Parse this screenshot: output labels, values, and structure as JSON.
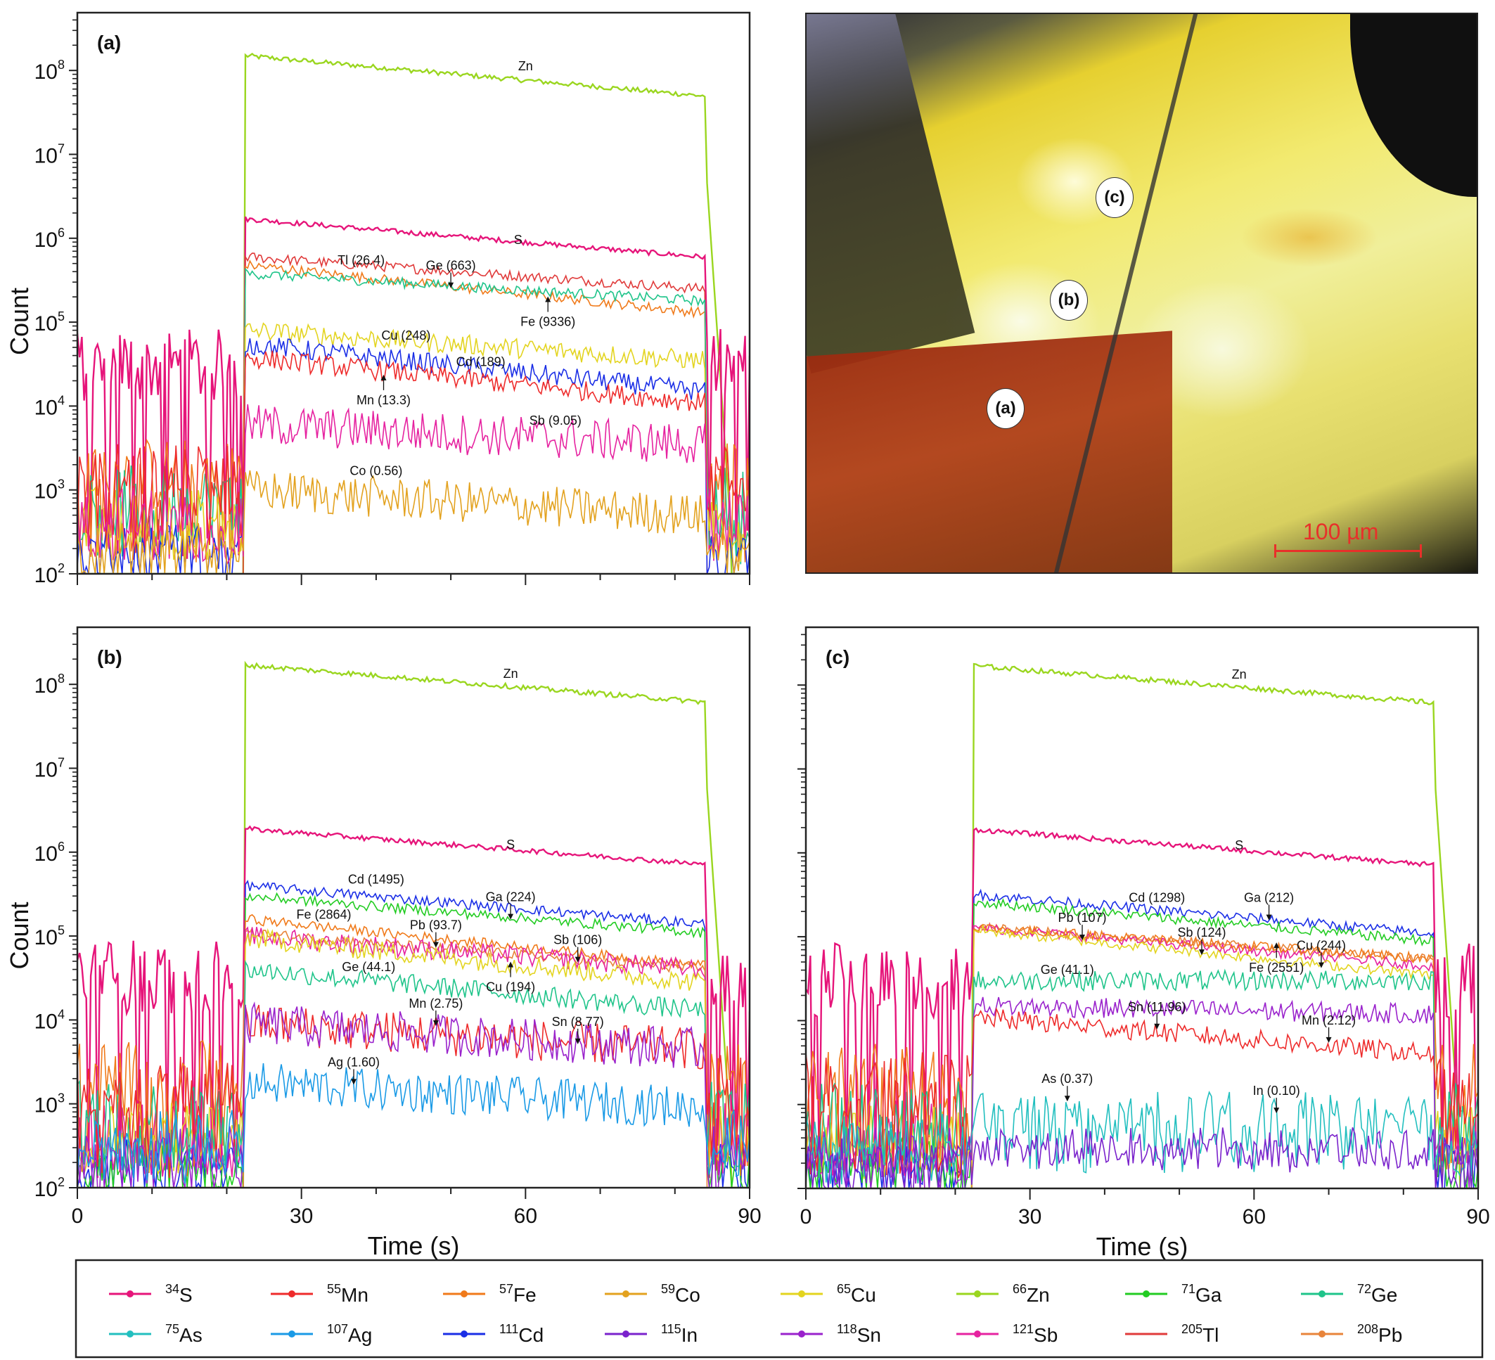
{
  "figure": {
    "micrograph": {
      "label_spots": [
        "(a)",
        "(b)",
        "(c)"
      ],
      "scale_bar": "100 µm"
    },
    "legend": [
      {
        "mass": "34",
        "el": "S",
        "color": "#e6157a",
        "marker": "square"
      },
      {
        "mass": "55",
        "el": "Mn",
        "color": "#ee2b2b",
        "marker": "circle"
      },
      {
        "mass": "57",
        "el": "Fe",
        "color": "#f07a1a",
        "marker": "triangle-up"
      },
      {
        "mass": "59",
        "el": "Co",
        "color": "#e3a21f",
        "marker": "triangle-down"
      },
      {
        "mass": "65",
        "el": "Cu",
        "color": "#e3d41f",
        "marker": "diamond"
      },
      {
        "mass": "66",
        "el": "Zn",
        "color": "#9ad61f",
        "marker": "triangle-left"
      },
      {
        "mass": "71",
        "el": "Ga",
        "color": "#22cc22",
        "marker": "triangle-right"
      },
      {
        "mass": "72",
        "el": "Ge",
        "color": "#1fc48a",
        "marker": "hexagon"
      },
      {
        "mass": "75",
        "el": "As",
        "color": "#22bfbf",
        "marker": "star"
      },
      {
        "mass": "107",
        "el": "Ag",
        "color": "#1a9ae6",
        "marker": "pentagon"
      },
      {
        "mass": "111",
        "el": "Cd",
        "color": "#1a2ee6",
        "marker": "circle-open"
      },
      {
        "mass": "115",
        "el": "In",
        "color": "#7a22cc",
        "marker": "plus"
      },
      {
        "mass": "118",
        "el": "Sn",
        "color": "#9a22cc",
        "marker": "x"
      },
      {
        "mass": "121",
        "el": "Sb",
        "color": "#e622a0",
        "marker": "asterisk"
      },
      {
        "mass": "205",
        "el": "Tl",
        "color": "#e03a3a",
        "marker": "none"
      },
      {
        "mass": "208",
        "el": "Pb",
        "color": "#e8843a",
        "marker": "dash"
      }
    ]
  },
  "chart_data": [
    {
      "panel": "(a)",
      "type": "line",
      "xlabel": "",
      "ylabel": "Count",
      "xlim": [
        0,
        90
      ],
      "ylim": [
        100,
        500000000
      ],
      "yscale": "log",
      "x_ticks": [],
      "y_ticks": [
        "10^2",
        "10^3",
        "10^4",
        "10^5",
        "10^6",
        "10^7",
        "10^8"
      ],
      "ablation_window_s": [
        22.5,
        83.5
      ],
      "series": [
        {
          "el": "Zn",
          "background": 0,
          "start": 150000000,
          "end": 50000000
        },
        {
          "el": "S",
          "background": 30000,
          "start": 1700000,
          "end": 600000
        },
        {
          "el": "Tl",
          "background": 0,
          "start": 600000,
          "end": 250000
        },
        {
          "el": "Fe",
          "background": 1500,
          "start": 480000,
          "end": 130000
        },
        {
          "el": "Ge",
          "background": 700,
          "start": 380000,
          "end": 180000
        },
        {
          "el": "Cu",
          "background": 400,
          "start": 80000,
          "end": 35000
        },
        {
          "el": "Cd",
          "background": 150,
          "start": 55000,
          "end": 15000
        },
        {
          "el": "Mn",
          "background": 1300,
          "start": 38000,
          "end": 11000
        },
        {
          "el": "Sb",
          "background": 400,
          "start": 6000,
          "end": 3500
        },
        {
          "el": "Co",
          "background": 150,
          "start": 1000,
          "end": 500
        }
      ],
      "annotations": [
        {
          "text": "Zn",
          "x": 60,
          "y": 100000000
        },
        {
          "text": "S",
          "x": 59,
          "y": 850000
        },
        {
          "text": "Tl (26.4)",
          "x": 38,
          "y": 490000
        },
        {
          "text": "Ge (663)",
          "x": 50,
          "y": 420000,
          "arrow": "down"
        },
        {
          "text": "Fe (9336)",
          "x": 63,
          "y": 90000,
          "arrow": "up"
        },
        {
          "text": "Cu (248)",
          "x": 44,
          "y": 62000
        },
        {
          "text": "Cd (189)",
          "x": 54,
          "y": 30000
        },
        {
          "text": "Mn (13.3)",
          "x": 41,
          "y": 10500,
          "arrow": "up"
        },
        {
          "text": "Sb (9.05)",
          "x": 64,
          "y": 6000
        },
        {
          "text": "Co (0.56)",
          "x": 40,
          "y": 1500
        }
      ]
    },
    {
      "panel": "(b)",
      "type": "line",
      "xlabel": "Time (s)",
      "ylabel": "Count",
      "xlim": [
        0,
        90
      ],
      "ylim": [
        100,
        500000000
      ],
      "yscale": "log",
      "x_ticks": [
        "0",
        "30",
        "60",
        "90"
      ],
      "y_ticks": [
        "10^2",
        "10^3",
        "10^4",
        "10^5",
        "10^6",
        "10^7",
        "10^8"
      ],
      "ablation_window_s": [
        22.5,
        83.5
      ],
      "series": [
        {
          "el": "Zn",
          "background": 0,
          "start": 170000000,
          "end": 62000000
        },
        {
          "el": "S",
          "background": 33000,
          "start": 1900000,
          "end": 720000
        },
        {
          "el": "Cd",
          "background": 150,
          "start": 400000,
          "end": 140000
        },
        {
          "el": "Ga",
          "background": 150,
          "start": 300000,
          "end": 110000
        },
        {
          "el": "Fe",
          "background": 2000,
          "start": 160000,
          "end": 45000
        },
        {
          "el": "Pb",
          "background": 0,
          "start": 110000,
          "end": 40000
        },
        {
          "el": "Sb",
          "background": 400,
          "start": 100000,
          "end": 40000
        },
        {
          "el": "Cu",
          "background": 400,
          "start": 95000,
          "end": 28000
        },
        {
          "el": "Ge",
          "background": 700,
          "start": 40000,
          "end": 13000
        },
        {
          "el": "Mn",
          "background": 1500,
          "start": 9000,
          "end": 4500
        },
        {
          "el": "Sn",
          "background": 200,
          "start": 9000,
          "end": 4500
        },
        {
          "el": "Ag",
          "background": 300,
          "start": 1800,
          "end": 900
        }
      ],
      "annotations": [
        {
          "text": "Zn",
          "x": 58,
          "y": 120000000
        },
        {
          "text": "S",
          "x": 58,
          "y": 1100000
        },
        {
          "text": "Cd (1495)",
          "x": 40,
          "y": 420000
        },
        {
          "text": "Ga (224)",
          "x": 58,
          "y": 260000,
          "arrow": "down"
        },
        {
          "text": "Fe (2864)",
          "x": 33,
          "y": 160000
        },
        {
          "text": "Pb (93.7)",
          "x": 48,
          "y": 120000,
          "arrow": "down"
        },
        {
          "text": "Sb (106)",
          "x": 67,
          "y": 80000,
          "arrow": "down"
        },
        {
          "text": "Ge (44.1)",
          "x": 39,
          "y": 38000
        },
        {
          "text": "Cu (194)",
          "x": 58,
          "y": 22000,
          "arrow": "up"
        },
        {
          "text": "Mn (2.75)",
          "x": 48,
          "y": 14000,
          "arrow": "down"
        },
        {
          "text": "Sn (8.77)",
          "x": 67,
          "y": 8500,
          "arrow": "down"
        },
        {
          "text": "Ag (1.60)",
          "x": 37,
          "y": 2800,
          "arrow": "down"
        }
      ]
    },
    {
      "panel": "(c)",
      "type": "line",
      "xlabel": "Time (s)",
      "ylabel": "",
      "xlim": [
        0,
        90
      ],
      "ylim": [
        100,
        500000000
      ],
      "yscale": "log",
      "x_ticks": [
        "0",
        "30",
        "60",
        "90"
      ],
      "y_ticks": [],
      "ablation_window_s": [
        22.5,
        83.5
      ],
      "series": [
        {
          "el": "Zn",
          "background": 0,
          "start": 170000000,
          "end": 62000000
        },
        {
          "el": "S",
          "background": 30000,
          "start": 1900000,
          "end": 720000
        },
        {
          "el": "Cd",
          "background": 150,
          "start": 320000,
          "end": 110000
        },
        {
          "el": "Ga",
          "background": 150,
          "start": 260000,
          "end": 90000
        },
        {
          "el": "Pb",
          "background": 0,
          "start": 130000,
          "end": 55000
        },
        {
          "el": "Sb",
          "background": 400,
          "start": 130000,
          "end": 45000
        },
        {
          "el": "Fe",
          "background": 2000,
          "start": 130000,
          "end": 55000
        },
        {
          "el": "Cu",
          "background": 400,
          "start": 120000,
          "end": 35000
        },
        {
          "el": "Ge",
          "background": 700,
          "start": 30000,
          "end": 30000
        },
        {
          "el": "Sn",
          "background": 200,
          "start": 15000,
          "end": 12000
        },
        {
          "el": "Mn",
          "background": 1500,
          "start": 11000,
          "end": 4000
        },
        {
          "el": "As",
          "background": 300,
          "start": 800,
          "end": 800
        },
        {
          "el": "In",
          "background": 150,
          "start": 300,
          "end": 300
        }
      ],
      "annotations": [
        {
          "text": "Zn",
          "x": 58,
          "y": 120000000
        },
        {
          "text": "S",
          "x": 58,
          "y": 1100000
        },
        {
          "text": "Cd (1298)",
          "x": 47,
          "y": 260000
        },
        {
          "text": "Ga (212)",
          "x": 62,
          "y": 260000,
          "arrow": "down"
        },
        {
          "text": "Pb (107)",
          "x": 37,
          "y": 150000,
          "arrow": "down"
        },
        {
          "text": "Sb (124)",
          "x": 53,
          "y": 100000,
          "arrow": "down"
        },
        {
          "text": "Cu (244)",
          "x": 69,
          "y": 70000,
          "arrow": "down"
        },
        {
          "text": "Fe (2551)",
          "x": 63,
          "y": 38000,
          "arrow": "up"
        },
        {
          "text": "Ge (41.1)",
          "x": 35,
          "y": 36000
        },
        {
          "text": "Sn (11.96)",
          "x": 47,
          "y": 13000,
          "arrow": "down"
        },
        {
          "text": "Mn (2.12)",
          "x": 70,
          "y": 9000,
          "arrow": "down"
        },
        {
          "text": "As (0.37)",
          "x": 35,
          "y": 1800,
          "arrow": "down"
        },
        {
          "text": "In (0.10)",
          "x": 63,
          "y": 1300,
          "arrow": "down"
        }
      ]
    }
  ]
}
